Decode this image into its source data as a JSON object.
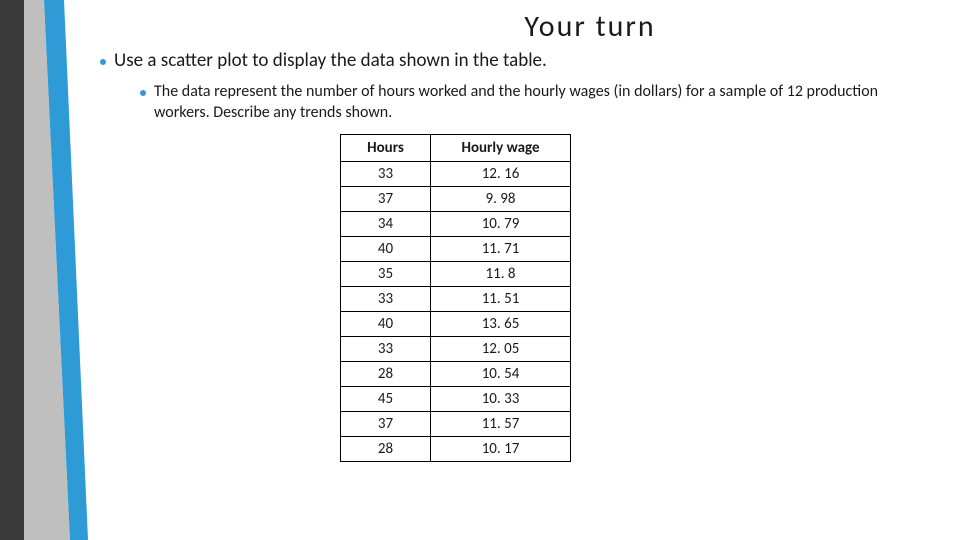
{
  "title": "Your turn",
  "bullets": {
    "level1": "Use a scatter plot to display the data shown in the table.",
    "level2": "The data represent the number of hours worked and the hourly wages (in dollars) for a sample of 12 production workers.  Describe any trends shown."
  },
  "table": {
    "columns": [
      "Hours",
      "Hourly wage"
    ],
    "rows": [
      [
        "33",
        "12. 16"
      ],
      [
        "37",
        "9. 98"
      ],
      [
        "34",
        "10. 79"
      ],
      [
        "40",
        "11. 71"
      ],
      [
        "35",
        "11. 8"
      ],
      [
        "33",
        "11. 51"
      ],
      [
        "40",
        "13. 65"
      ],
      [
        "33",
        "12. 05"
      ],
      [
        "28",
        "10. 54"
      ],
      [
        "45",
        "10. 33"
      ],
      [
        "37",
        "11. 57"
      ],
      [
        "28",
        "10. 17"
      ]
    ],
    "border_color": "#000000",
    "header_fontweight": 700,
    "cell_fontsize": 15
  },
  "accent": {
    "colors": {
      "dark_gray": "#3a3a3a",
      "light_gray": "#bfbfbf",
      "blue": "#2e9bd6"
    }
  }
}
